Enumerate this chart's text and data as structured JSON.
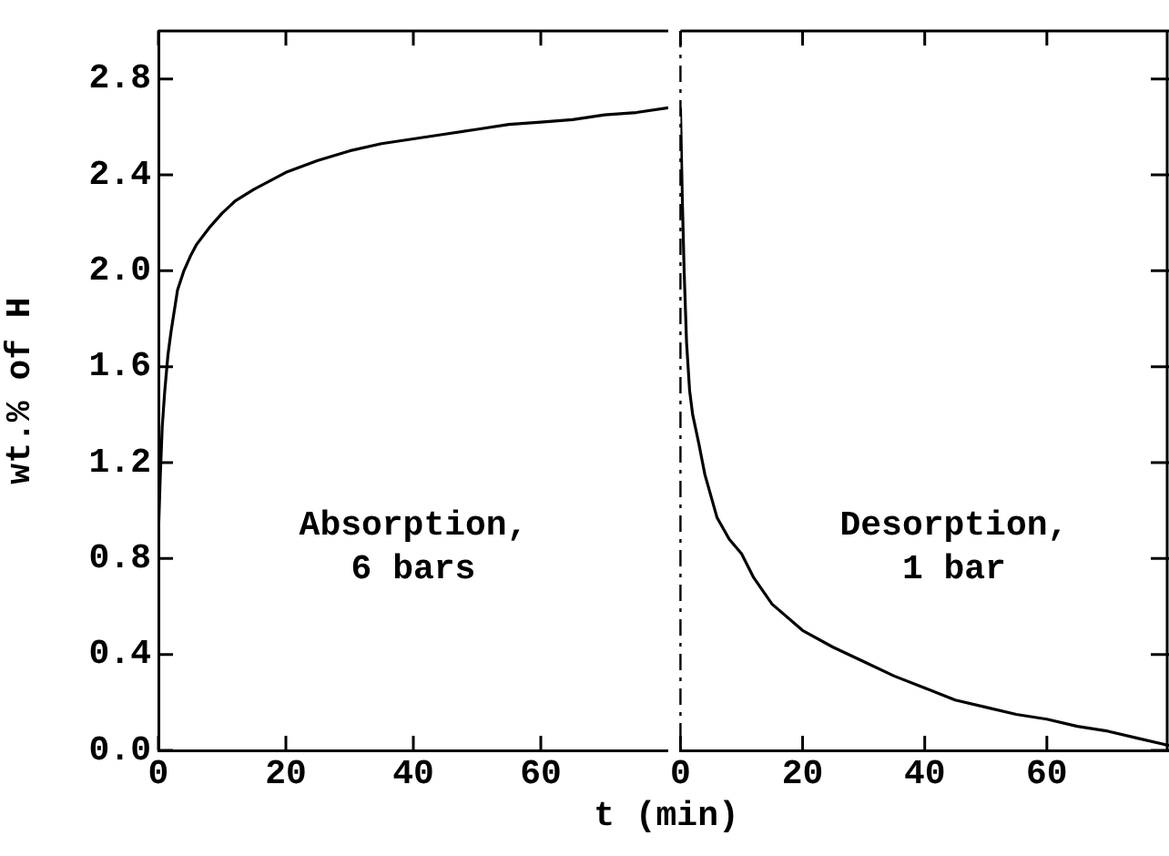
{
  "chart_data": [
    {
      "type": "line",
      "xlabel": "t (min)",
      "ylabel": "wt.% of H",
      "annotations": [
        "Absorption,\n6 bars"
      ],
      "color": "#000000",
      "x": [
        0,
        0.3,
        0.6,
        1,
        1.5,
        2,
        3,
        4,
        5,
        6,
        8,
        10,
        12,
        15,
        20,
        25,
        30,
        35,
        40,
        45,
        50,
        55,
        60,
        65,
        70,
        75,
        80
      ],
      "values": [
        0.9,
        1.15,
        1.35,
        1.5,
        1.65,
        1.75,
        1.92,
        2.0,
        2.06,
        2.11,
        2.18,
        2.24,
        2.29,
        2.34,
        2.41,
        2.46,
        2.5,
        2.53,
        2.55,
        2.57,
        2.59,
        2.61,
        2.62,
        2.63,
        2.65,
        2.66,
        2.68
      ],
      "xlim": [
        0,
        80
      ],
      "xticks": [
        0,
        20,
        40,
        60
      ],
      "ylim": [
        0,
        3.0
      ],
      "yticks": [
        {
          "value": 0,
          "label": "0.0"
        },
        0.4,
        0.8,
        1.2,
        1.6,
        {
          "value": 2,
          "label": "2.0"
        },
        2.4,
        2.8
      ],
      "grid": false,
      "legend": false
    },
    {
      "type": "line",
      "annotations": [
        "Desorption,\n1 bar"
      ],
      "color": "#000000",
      "x": [
        0,
        0.3,
        0.6,
        1,
        1.5,
        2,
        3,
        4,
        6,
        8,
        10,
        12,
        15,
        20,
        25,
        30,
        35,
        40,
        45,
        50,
        55,
        60,
        65,
        70,
        75,
        80
      ],
      "values": [
        2.68,
        2.3,
        2.0,
        1.7,
        1.5,
        1.4,
        1.28,
        1.15,
        0.97,
        0.88,
        0.82,
        0.72,
        0.61,
        0.5,
        0.43,
        0.37,
        0.31,
        0.26,
        0.21,
        0.18,
        0.15,
        0.13,
        0.1,
        0.08,
        0.05,
        0.02
      ],
      "xlim": [
        0,
        80
      ],
      "xticks": [
        0,
        20,
        40,
        60
      ],
      "ylim": [
        0,
        3.0
      ],
      "yticks": [
        0,
        0.4,
        0.8,
        1.2,
        1.6,
        2,
        2.4,
        2.8
      ],
      "grid": false,
      "legend": false,
      "tick_labels": "x",
      "ref_lines": [
        {
          "axis": "x",
          "value": 0,
          "line_style": "dashed"
        }
      ]
    }
  ]
}
